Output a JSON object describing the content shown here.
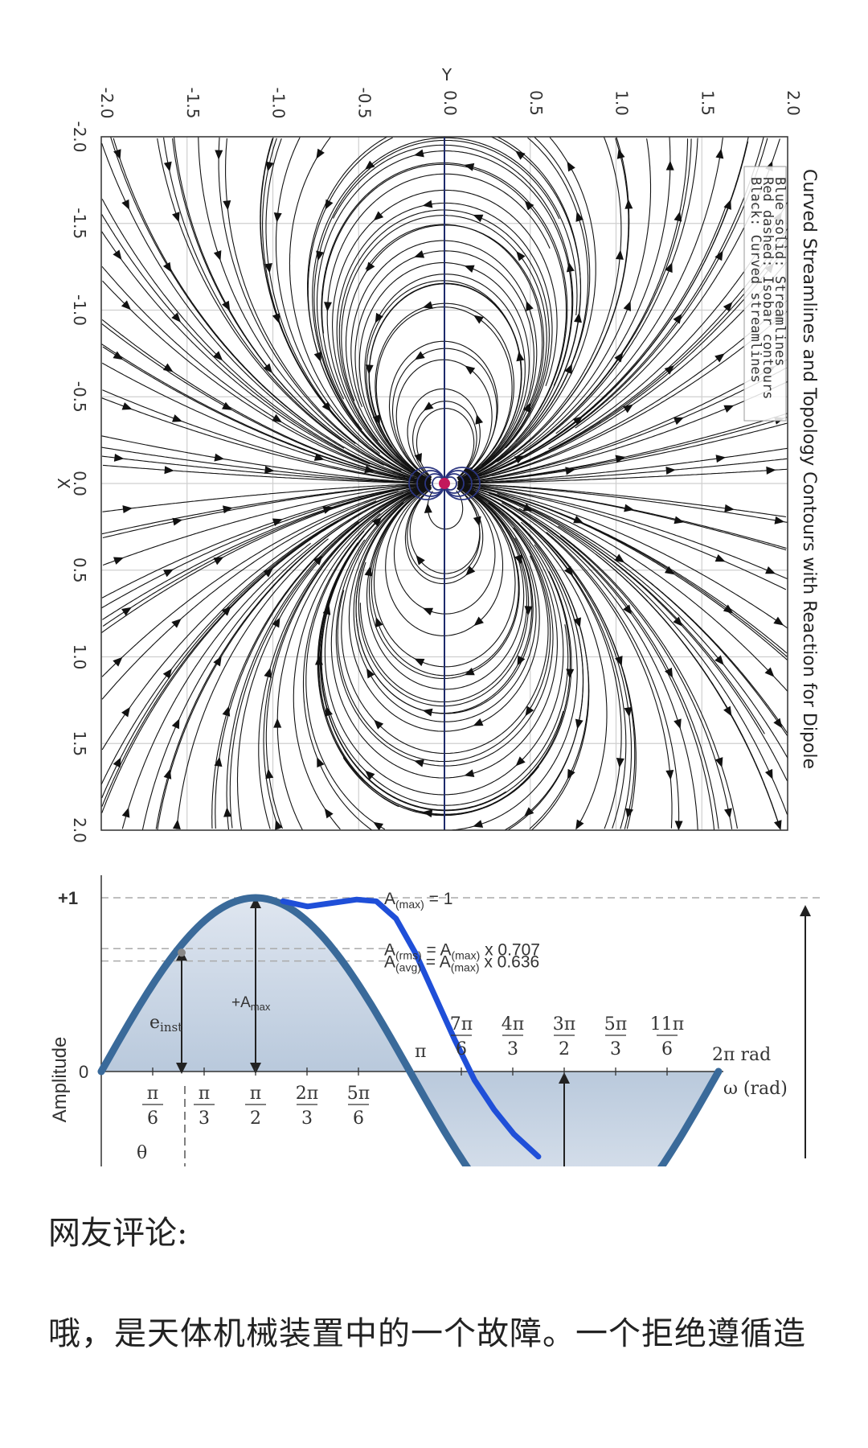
{
  "chart_data": [
    {
      "type": "streamplot",
      "title": "Curved Streamlines and Topology Contours with Reaction for Dipole",
      "xlabel": "X",
      "ylabel": "Y",
      "xlim": [
        -2.0,
        2.0
      ],
      "ylim": [
        -2.0,
        2.0
      ],
      "x_ticks": [
        "-2.0",
        "-1.5",
        "-1.0",
        "-0.5",
        "0.0",
        "0.5",
        "1.0",
        "1.5",
        "2.0"
      ],
      "y_ticks": [
        "-2.0",
        "-1.5",
        "-1.0",
        "-0.5",
        "0.0",
        "0.5",
        "1.0",
        "1.5",
        "2.0"
      ],
      "legend": [
        "Blue solid: Streamlines",
        "Red dashed: Isobar contours",
        "Black: Curved streamlines"
      ],
      "legend_position": "top-right",
      "grid": true,
      "dipole_center": [
        0.0,
        0.0
      ]
    },
    {
      "type": "line",
      "ylabel": "Amplitude",
      "xlabel": "ω (rad)",
      "y_ticks": [
        "+1",
        "0"
      ],
      "x_ticks_below": [
        {
          "num": "π",
          "den": "6",
          "x": 0.5236
        },
        {
          "num": "π",
          "den": "3",
          "x": 1.0472
        },
        {
          "num": "π",
          "den": "2",
          "x": 1.5708
        },
        {
          "num": "2π",
          "den": "3",
          "x": 2.0944
        },
        {
          "num": "5π",
          "den": "6",
          "x": 2.618
        }
      ],
      "x_ticks_above": [
        {
          "num": "7π",
          "den": "6",
          "x": 3.6652
        },
        {
          "num": "4π",
          "den": "3",
          "x": 4.1888
        },
        {
          "num": "3π",
          "den": "2",
          "x": 4.7124
        },
        {
          "num": "5π",
          "den": "3",
          "x": 5.236
        },
        {
          "num": "11π",
          "den": "6",
          "x": 5.7596
        }
      ],
      "pi_label": "π",
      "end_label": "2π rad",
      "annotations": [
        {
          "text": "A(max) = 1",
          "main": "A",
          "sub": "(max)",
          "rest": " = 1",
          "y": 1.0
        },
        {
          "text": "A(rms) = A(max) x 0.707",
          "main": "A",
          "sub": "(rms)",
          "rest": " = A",
          "sub2": "(max)",
          "rest2": " x 0.707",
          "y": 0.707
        },
        {
          "text": "A(avg) = A(max) x 0.636",
          "main": "A",
          "sub": "(avg)",
          "rest": " = A",
          "sub2": "(max)",
          "rest2": " x 0.636",
          "y": 0.636
        }
      ],
      "einst_main": "e",
      "einst_sub": "inst",
      "amax_main": "+A",
      "amax_sub": "max",
      "theta_label": "θ",
      "series": [
        {
          "name": "sine wave",
          "color": "#3a6a9a",
          "function": "sin",
          "x_range": [
            0,
            6.2832
          ]
        },
        {
          "name": "hand-drawn blue curve",
          "color": "#1f4fd8",
          "points": [
            [
              1.85,
              0.98
            ],
            [
              2.1,
              0.95
            ],
            [
              2.35,
              0.97
            ],
            [
              2.6,
              0.99
            ],
            [
              2.8,
              0.98
            ],
            [
              3.0,
              0.88
            ],
            [
              3.2,
              0.68
            ],
            [
              3.4,
              0.43
            ],
            [
              3.6,
              0.18
            ],
            [
              3.8,
              -0.05
            ],
            [
              4.0,
              -0.22
            ],
            [
              4.2,
              -0.36
            ],
            [
              4.45,
              -0.49
            ]
          ]
        }
      ]
    }
  ],
  "article": {
    "comment_label": "网友评论:",
    "comment_text": "哦，是天体机械装置中的一个故障。一个拒绝遵循造"
  }
}
